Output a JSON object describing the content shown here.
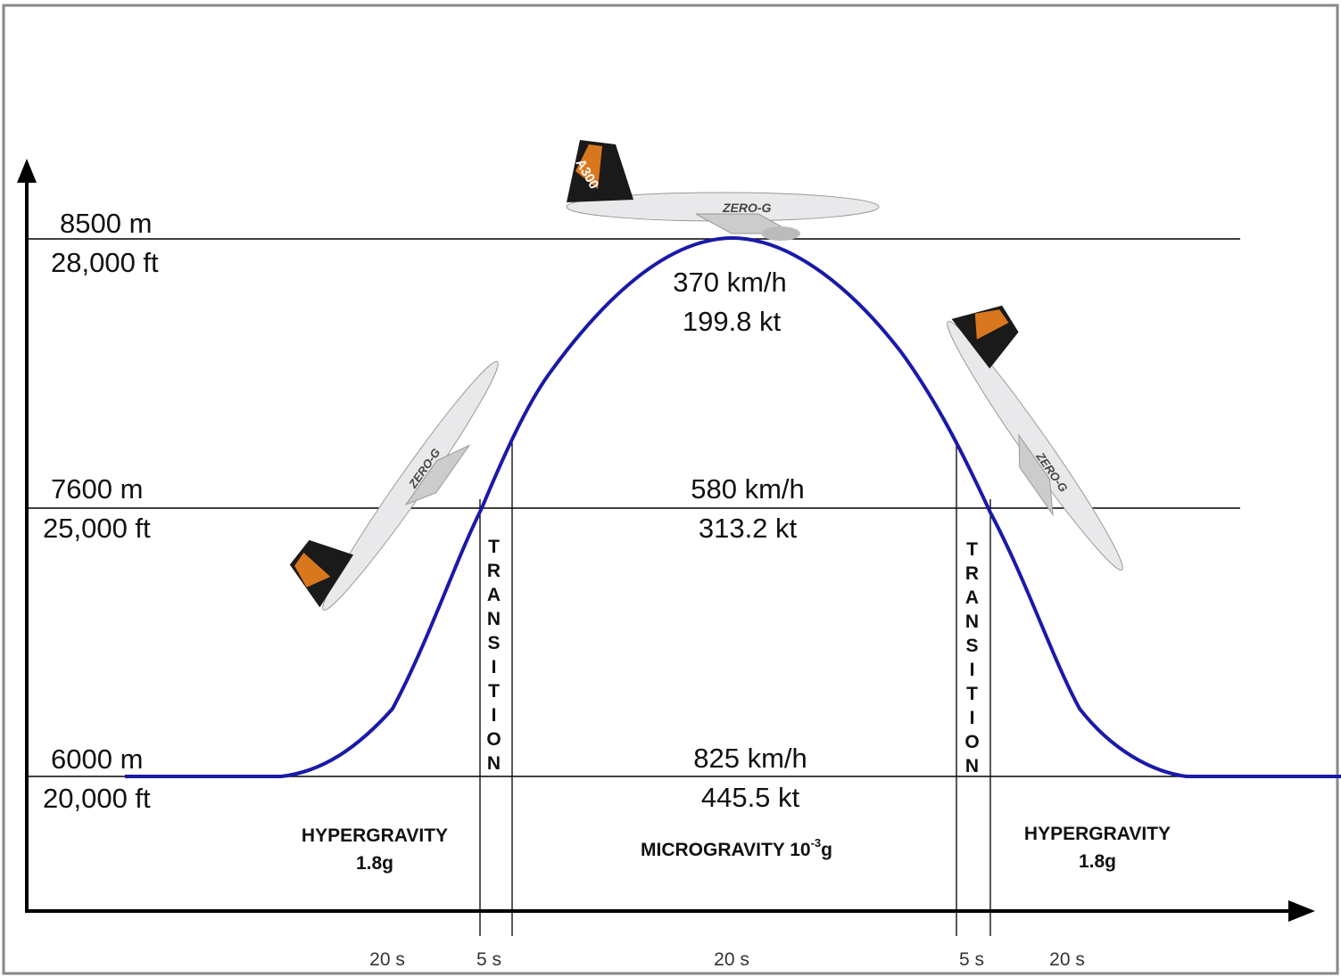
{
  "altitudes": [
    {
      "m": "8500 m",
      "ft": "28,000 ft"
    },
    {
      "m": "7600 m",
      "ft": "25,000 ft"
    },
    {
      "m": "6000 m",
      "ft": "20,000 ft"
    }
  ],
  "speeds": [
    {
      "kmh": "370 km/h",
      "kt": "199.8 kt"
    },
    {
      "kmh": "580 km/h",
      "kt": "313.2 kt"
    },
    {
      "kmh": "825 km/h",
      "kt": "445.5 kt"
    }
  ],
  "phases": [
    {
      "name": "HYPERGRAVITY",
      "g": "1.8g"
    },
    {
      "name": "MICROGRAVITY 10",
      "sup": "-3",
      "g": "g"
    },
    {
      "name": "HYPERGRAVITY",
      "g": "1.8g"
    }
  ],
  "transitions": [
    "TRANSITION",
    "TRANSITION"
  ],
  "durations": [
    "20 s",
    "5 s",
    "20 s",
    "5 s",
    "20 s"
  ],
  "planes": [
    {
      "type": "A300",
      "livery": "ZERO-G"
    }
  ]
}
